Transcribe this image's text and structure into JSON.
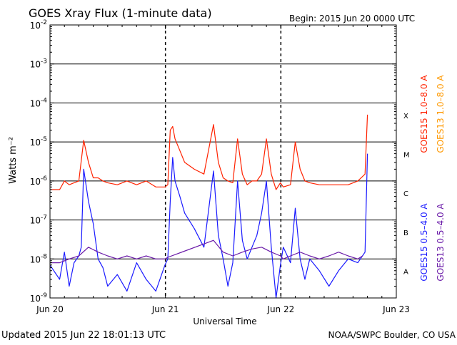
{
  "header": {
    "title": "GOES Xray Flux (1-minute data)",
    "begin": "Begin:  2015 Jun 20 0000 UTC"
  },
  "footer": {
    "updated": "Updated 2015 Jun 22 18:01:13 UTC",
    "credit": "NOAA/SWPC Boulder, CO USA"
  },
  "colors": {
    "goes15_long": "#ff2200",
    "goes13_long": "#ff9900",
    "goes15_short": "#1a1aff",
    "goes13_short": "#6a1aa8",
    "background": "#ffffff",
    "axis": "#000000"
  },
  "chart_data": {
    "type": "line",
    "xlabel": "Universal Time",
    "ylabel": "Watts m⁻²",
    "y_scale": "log",
    "ylim": [
      1e-09,
      0.01
    ],
    "xlim": [
      "2015-06-20T00:00",
      "2015-06-23T00:00"
    ],
    "x_ticks": [
      {
        "t": 0,
        "label": "Jun 20"
      },
      {
        "t": 24,
        "label": "Jun 21"
      },
      {
        "t": 48,
        "label": "Jun 22"
      },
      {
        "t": 72,
        "label": "Jun 23"
      }
    ],
    "y_ticks": [
      {
        "exp": -9,
        "label": "10",
        "sup": "-9"
      },
      {
        "exp": -8,
        "label": "10",
        "sup": "-8"
      },
      {
        "exp": -7,
        "label": "10",
        "sup": "-7"
      },
      {
        "exp": -6,
        "label": "10",
        "sup": "-6"
      },
      {
        "exp": -5,
        "label": "10",
        "sup": "-5"
      },
      {
        "exp": -4,
        "label": "10",
        "sup": "-4"
      },
      {
        "exp": -3,
        "label": "10",
        "sup": "-3"
      },
      {
        "exp": -2,
        "label": "10",
        "sup": "-2"
      }
    ],
    "flare_classes": [
      {
        "label": "X",
        "exp": -4
      },
      {
        "label": "M",
        "exp": -5
      },
      {
        "label": "C",
        "exp": -6
      },
      {
        "label": "B",
        "exp": -7
      },
      {
        "label": "A",
        "exp": -8
      }
    ],
    "day_boundaries": [
      24,
      48
    ],
    "legend_right_top": [
      {
        "label": "GOES15 1.0–8.0 A",
        "color": "#ff2200"
      },
      {
        "label": "GOES13 1.0–8.0 A",
        "color": "#ff9900"
      }
    ],
    "legend_right_bottom": [
      {
        "label": "GOES15 0.5–4.0 A",
        "color": "#1a1aff"
      },
      {
        "label": "GOES13 0.5–4.0 A",
        "color": "#6a1aa8"
      }
    ],
    "series": [
      {
        "name": "GOES15 1.0-8.0 A",
        "color": "#ff2200",
        "x_hours": [
          0,
          2,
          3,
          4,
          5,
          6,
          7,
          8,
          9,
          10,
          11,
          12,
          14,
          16,
          18,
          20,
          22,
          23.9,
          24.5,
          25,
          25.5,
          26,
          27,
          28,
          30,
          32,
          34,
          35,
          36,
          37,
          38,
          39,
          40,
          41,
          42,
          43,
          44,
          45,
          46,
          47,
          47.9,
          48.5,
          50,
          51,
          52,
          53,
          54,
          56,
          58,
          60,
          62,
          64,
          65.5,
          66
        ],
        "y": [
          6e-07,
          6e-07,
          1e-06,
          8e-07,
          9e-07,
          1e-06,
          1.1e-05,
          3e-06,
          1.2e-06,
          1.2e-06,
          1e-06,
          9e-07,
          8e-07,
          1e-06,
          8e-07,
          1e-06,
          7e-07,
          7e-07,
          8e-07,
          2e-05,
          2.5e-05,
          1.2e-05,
          6e-06,
          3e-06,
          2e-06,
          1.5e-06,
          2.8e-05,
          3e-06,
          1.2e-06,
          1e-06,
          9e-07,
          1.2e-05,
          1.5e-06,
          8e-07,
          1e-06,
          1e-06,
          1.5e-06,
          1.2e-05,
          1.5e-06,
          6e-07,
          9e-07,
          7e-07,
          8e-07,
          1e-05,
          2e-06,
          1e-06,
          9e-07,
          8e-07,
          8e-07,
          8e-07,
          8e-07,
          1e-06,
          1.5e-06,
          5e-05
        ]
      },
      {
        "name": "GOES15 0.5-4.0 A",
        "color": "#1a1aff",
        "x_hours": [
          0,
          2,
          3,
          4,
          5,
          6,
          6.5,
          7,
          8,
          9,
          10,
          11,
          12,
          14,
          16,
          18,
          20,
          22,
          23.9,
          24.5,
          25,
          25.5,
          26,
          27,
          28,
          30,
          32,
          34,
          35,
          36,
          37,
          38,
          39,
          40,
          41,
          42,
          43,
          44,
          45,
          46,
          47,
          47.9,
          48.5,
          50,
          51,
          52,
          53,
          54,
          56,
          58,
          60,
          62,
          64,
          65.5,
          66
        ],
        "y": [
          7e-09,
          3e-09,
          1.5e-08,
          2e-09,
          8e-09,
          1.2e-08,
          2e-08,
          2e-06,
          3e-07,
          8e-08,
          1e-08,
          6e-09,
          2e-09,
          4e-09,
          1.5e-09,
          8e-09,
          3e-09,
          1.5e-09,
          7e-09,
          1e-08,
          3e-07,
          4e-06,
          1e-06,
          4e-07,
          1.5e-07,
          6e-08,
          2e-08,
          1.8e-06,
          4e-08,
          1e-08,
          2e-09,
          8e-09,
          1e-06,
          3e-08,
          1e-08,
          2e-08,
          4e-08,
          1.5e-07,
          1e-06,
          2e-08,
          1e-09,
          7e-09,
          2e-08,
          8e-09,
          2e-07,
          1e-08,
          3e-09,
          1e-08,
          5e-09,
          2e-09,
          5e-09,
          1e-08,
          8e-09,
          1.5e-08,
          5e-06
        ]
      },
      {
        "name": "GOES13 0.5-4.0 A",
        "color": "#6a1aa8",
        "x_hours": [
          0,
          2,
          4,
          6,
          8,
          10,
          12,
          14,
          16,
          18,
          20,
          22,
          23.9,
          24.5,
          34,
          36,
          38,
          40,
          42,
          44,
          46,
          47.9,
          48.5,
          50,
          52,
          54,
          56,
          58,
          60,
          62,
          64,
          65
        ],
        "y": [
          8e-09,
          8e-09,
          1e-08,
          1.2e-08,
          2e-08,
          1.5e-08,
          1.2e-08,
          1e-08,
          1.2e-08,
          1e-08,
          1.2e-08,
          1e-08,
          1e-08,
          1.1e-08,
          3e-08,
          1.5e-08,
          1.2e-08,
          1.5e-08,
          1.8e-08,
          2e-08,
          1.5e-08,
          1.2e-08,
          1e-08,
          1.2e-08,
          1.5e-08,
          1.2e-08,
          1e-08,
          1.2e-08,
          1.5e-08,
          1.2e-08,
          1e-08,
          1.2e-08
        ]
      }
    ]
  }
}
